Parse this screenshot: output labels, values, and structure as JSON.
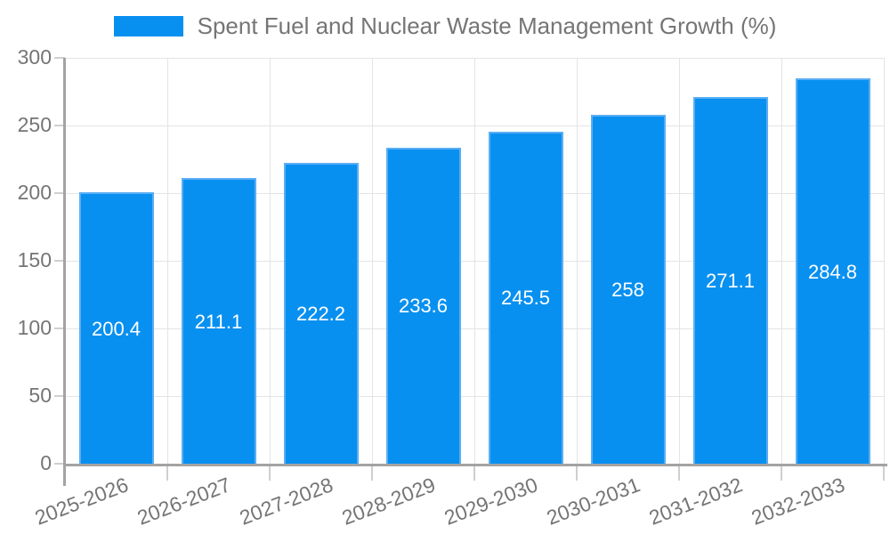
{
  "chart_data": {
    "type": "bar",
    "title": "Spent Fuel and Nuclear Waste Management Growth (%)",
    "categories": [
      "2025-2026",
      "2026-2027",
      "2027-2028",
      "2028-2029",
      "2029-2030",
      "2030-2031",
      "2031-2032",
      "2032-2033"
    ],
    "values": [
      200.4,
      211.1,
      222.2,
      233.6,
      245.5,
      258,
      271.1,
      284.8
    ],
    "value_labels": [
      "200.4",
      "211.1",
      "222.2",
      "233.6",
      "245.5",
      "258",
      "271.1",
      "284.8"
    ],
    "xlabel": "",
    "ylabel": "",
    "ylim": [
      0,
      300
    ],
    "ytick_step": 50,
    "ytick_labels": [
      "0",
      "50",
      "100",
      "150",
      "200",
      "250",
      "300"
    ],
    "grid": true,
    "legend_position": "top-center",
    "colors": {
      "bar_fill": "#0890F0",
      "bar_border": "#5AAEF4",
      "grid_line": "#E4E4E4",
      "axis_line": "#A3A3A3",
      "tick_mark": "#CFCFCF",
      "axis_text": "#757575",
      "value_text": "#FFFFFF",
      "background": "#FFFFFF"
    }
  }
}
